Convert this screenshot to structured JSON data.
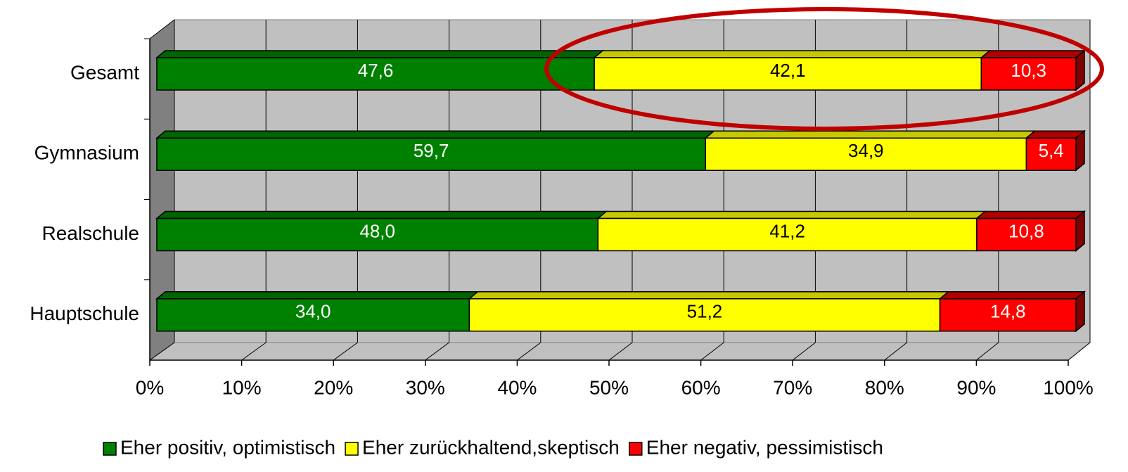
{
  "chart_data": {
    "type": "bar",
    "orientation": "horizontal",
    "stacked": true,
    "categories": [
      "Gesamt",
      "Gymnasium",
      "Realschule",
      "Hauptschule"
    ],
    "series": [
      {
        "name": "Eher positiv, optimistisch",
        "color": "#008000",
        "values": [
          47.6,
          59.7,
          48.0,
          34.0
        ],
        "value_labels": [
          "47,6",
          "59,7",
          "48,0",
          "34,0"
        ]
      },
      {
        "name": "Eher zurückhaltend,skeptisch",
        "color": "#ffff00",
        "values": [
          42.1,
          34.9,
          41.2,
          51.2
        ],
        "value_labels": [
          "42,1",
          "34,9",
          "41,2",
          "51,2"
        ]
      },
      {
        "name": "Eher negativ, pessimistisch",
        "color": "#ff0000",
        "values": [
          10.3,
          5.4,
          10.8,
          14.8
        ],
        "value_labels": [
          "10,3",
          "5,4",
          "10,8",
          "14,8"
        ]
      }
    ],
    "xlim": [
      0,
      100
    ],
    "xticks": [
      {
        "value": 0,
        "label": "0%"
      },
      {
        "value": 10,
        "label": "10%"
      },
      {
        "value": 20,
        "label": "20%"
      },
      {
        "value": 30,
        "label": "30%"
      },
      {
        "value": 40,
        "label": "40%"
      },
      {
        "value": 50,
        "label": "50%"
      },
      {
        "value": 60,
        "label": "60%"
      },
      {
        "value": 70,
        "label": "70%"
      },
      {
        "value": 80,
        "label": "80%"
      },
      {
        "value": 90,
        "label": "90%"
      },
      {
        "value": 100,
        "label": "100%"
      }
    ],
    "grid": true,
    "legend": "bottom"
  }
}
